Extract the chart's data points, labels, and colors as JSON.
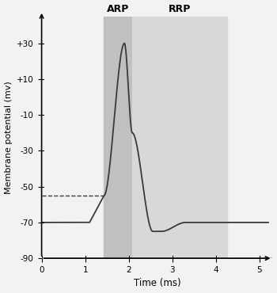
{
  "xlabel": "Time (ms)",
  "ylabel": "Membrane potential (mv)",
  "xlim": [
    0,
    5.3
  ],
  "ylim": [
    -90,
    45
  ],
  "yticks": [
    -90,
    -70,
    -55,
    -50,
    -30,
    -10,
    10,
    30
  ],
  "ytick_labels": [
    "-90",
    "-70",
    "",
    "-50",
    "-30",
    "-10",
    "+10",
    "+30"
  ],
  "xticks": [
    0,
    1,
    2,
    3,
    4,
    5
  ],
  "resting_potential": -70,
  "threshold": -55,
  "ARP_start": 1.43,
  "ARP_end": 2.08,
  "RRP_start": 2.08,
  "RRP_end": 4.25,
  "ARP_color": "#c0c0c0",
  "RRP_color": "#d8d8d8",
  "line_color": "#3a3a3a",
  "dashed_color": "#3a3a3a",
  "bg_color": "#f2f2f2",
  "ARP_label": "ARP",
  "RRP_label": "RRP"
}
